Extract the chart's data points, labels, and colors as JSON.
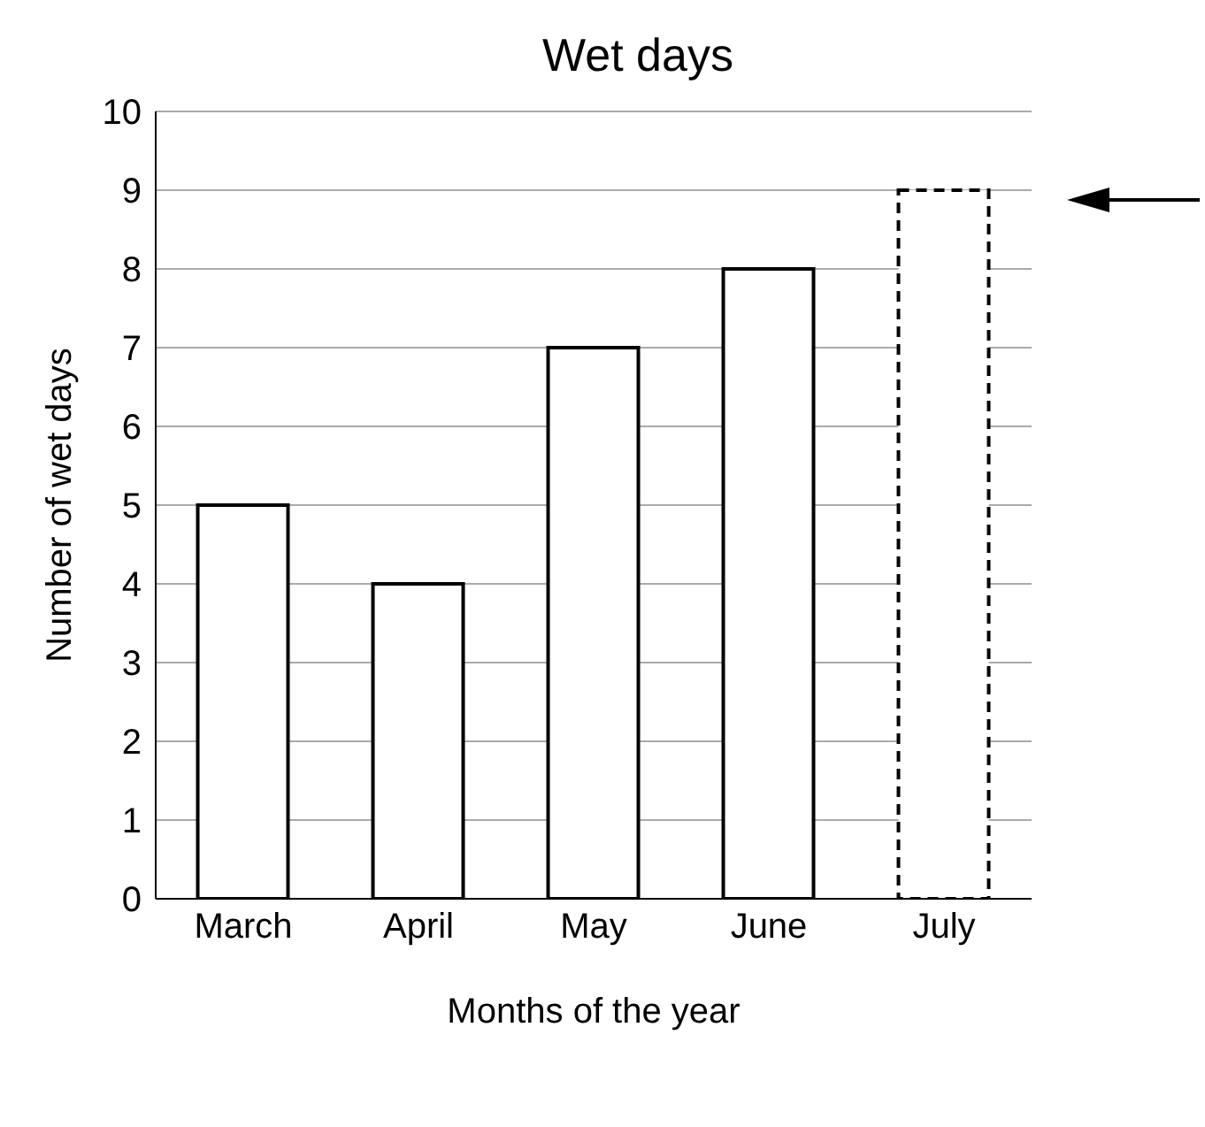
{
  "chart_data": {
    "type": "bar",
    "title": "Wet days",
    "xlabel": "Months of the year",
    "ylabel": "Number of wet days",
    "categories": [
      "March",
      "April",
      "May",
      "June",
      "July"
    ],
    "series": [
      {
        "color": "#ffffff",
        "values": [
          5,
          4,
          7,
          8,
          null
        ],
        "line_style": "solid"
      },
      {
        "color": "#ffffff",
        "values": [
          null,
          null,
          null,
          null,
          9
        ],
        "line_style": "dashed"
      }
    ],
    "ylim": [
      0,
      10
    ],
    "yticks": [
      0,
      1,
      2,
      3,
      4,
      5,
      6,
      7,
      8,
      9,
      10
    ],
    "grid": "y",
    "legend": false
  }
}
